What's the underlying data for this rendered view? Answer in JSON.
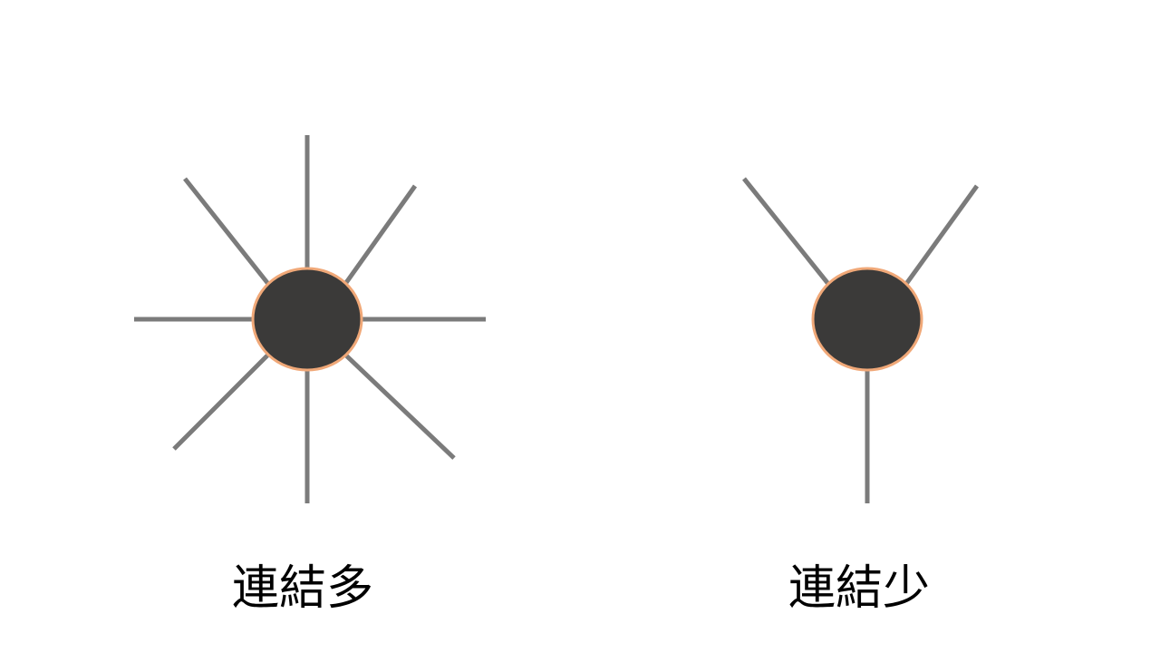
{
  "nodes": [
    {
      "id": "left",
      "label": "連結多",
      "edge_count": 8
    },
    {
      "id": "right",
      "label": "連結少",
      "edge_count": 3
    }
  ],
  "colors": {
    "background": "#ffffff",
    "node_fill": "#3b3a39",
    "node_outline": "#f0a878",
    "edge": "#7b7b7b",
    "label": "#000000"
  }
}
